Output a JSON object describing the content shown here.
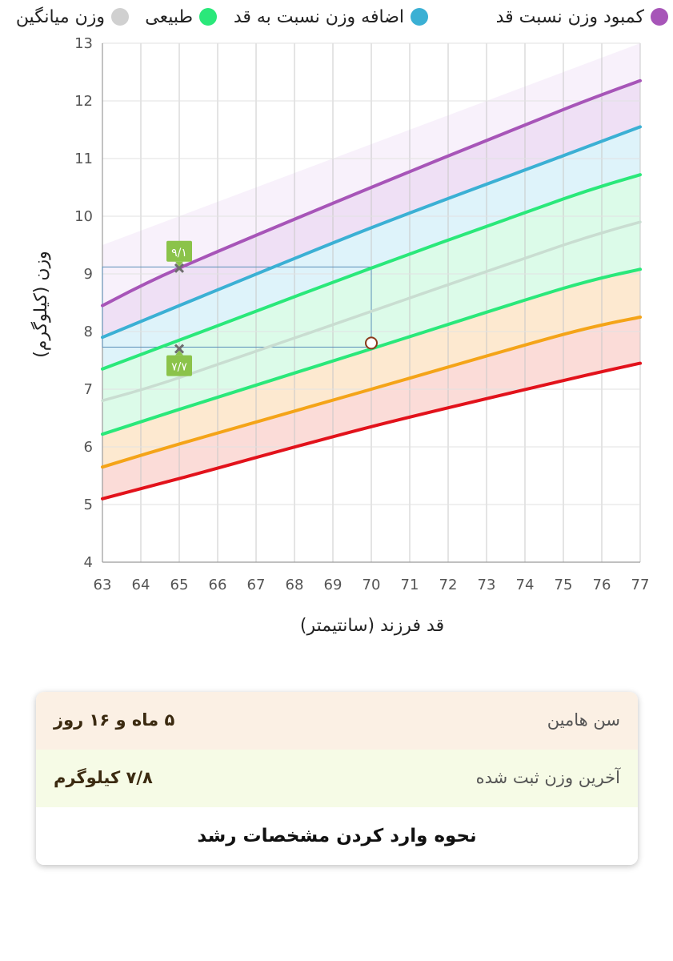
{
  "legend": [
    {
      "label": "کمبود وزن نسبت قد",
      "color": "#a755b8"
    },
    {
      "label": "اضافه وزن نسبت به قد",
      "color": "#3bb0d4"
    },
    {
      "label": "طبیعی",
      "color": "#2ae87a"
    },
    {
      "label": "وزن میانگین",
      "color": "#d0d0d0"
    }
  ],
  "chart_data": {
    "type": "line",
    "xlabel": "قد فرزند (سانتیمتر)",
    "ylabel": "وزن (کیلوگرم)",
    "xlim": [
      63,
      77
    ],
    "ylim": [
      4,
      13
    ],
    "x_ticks": [
      "63",
      "64",
      "65",
      "66",
      "67",
      "68",
      "69",
      "70",
      "71",
      "72",
      "73",
      "74",
      "75",
      "76",
      "77"
    ],
    "y_ticks": [
      "4",
      "5",
      "6",
      "7",
      "8",
      "9",
      "10",
      "11",
      "12",
      "13"
    ],
    "x": [
      63,
      65,
      70,
      75,
      77
    ],
    "grid": true,
    "series": [
      {
        "color": "#a755b8",
        "fill": "#efe0f5",
        "values": [
          8.45,
          9.1,
          10.5,
          11.85,
          12.35
        ]
      },
      {
        "color": "#3bb0d4",
        "fill": "#def3fa",
        "values": [
          7.9,
          8.45,
          9.8,
          11.05,
          11.55
        ]
      },
      {
        "color": "#2ae87a",
        "fill": "#dcfbe9",
        "values": [
          7.35,
          7.85,
          9.1,
          10.3,
          10.72
        ]
      },
      {
        "color": "#c9ddd1",
        "fill": "",
        "values": [
          6.8,
          7.2,
          8.35,
          9.5,
          9.9
        ]
      },
      {
        "color": "#2ae87a",
        "fill": "#fde9d0",
        "values": [
          6.22,
          6.65,
          7.7,
          8.75,
          9.08
        ]
      },
      {
        "color": "#f4a418",
        "fill": "#fbdcd8",
        "values": [
          5.65,
          6.05,
          7.0,
          7.95,
          8.25
        ]
      },
      {
        "color": "#e2121b",
        "fill": "",
        "values": [
          5.1,
          5.45,
          6.35,
          7.15,
          7.45
        ]
      }
    ],
    "markers": [
      {
        "x": 65,
        "y": 9.1,
        "label": "۹/۱"
      },
      {
        "x": 65,
        "y": 7.7,
        "label": "۷/۷"
      }
    ],
    "current_point": {
      "x": 70,
      "y": 7.8
    },
    "guides": {
      "x_to": 70,
      "y_top": 9.12,
      "y_bottom": 7.73,
      "from_x": 63
    }
  },
  "info": {
    "age_label": "سن هامین",
    "age_value": "۵ ماه و ۱۶ روز",
    "weight_label": "آخرین وزن ثبت شده",
    "weight_value": "۷/۸ کیلوگرم",
    "guide_link": "نحوه وارد کردن مشخصات رشد"
  }
}
